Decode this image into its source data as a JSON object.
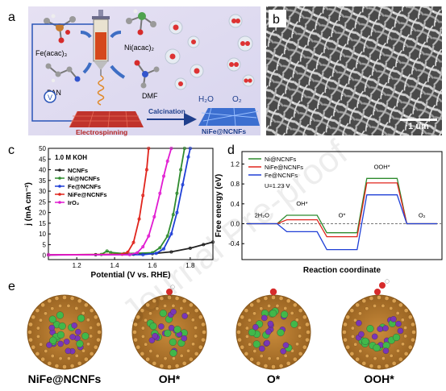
{
  "panels": {
    "a": {
      "letter": "a",
      "labels": {
        "fe": "Fe(acac)₃",
        "ni": "Ni(acac)₂",
        "pan": "PAN",
        "dmf": "DMF",
        "voltage": "V",
        "electrospinning": "Electrospinning",
        "calcination": "Calcination",
        "product": "NiFe@NCNFs",
        "h2o": "H₂O",
        "o2": "O₂"
      }
    },
    "b": {
      "letter": "b",
      "scalebar": "1 um"
    },
    "c": {
      "letter": "c"
    },
    "d": {
      "letter": "d"
    },
    "e": {
      "letter": "e",
      "structures": [
        {
          "label": "NiFe@NCNFs",
          "adsorbate": "none"
        },
        {
          "label": "OH*",
          "adsorbate": "OH"
        },
        {
          "label": "O*",
          "adsorbate": "O"
        },
        {
          "label": "OOH*",
          "adsorbate": "OOH"
        }
      ]
    }
  },
  "watermark": "Journal Pre-proof",
  "chart_data": [
    {
      "panel": "c",
      "type": "line",
      "xlabel": "Potential (V vs. RHE)",
      "ylabel": "j (mA cm⁻²)",
      "xlim": [
        1.05,
        1.92
      ],
      "ylim": [
        -2,
        50
      ],
      "xticks": [
        "1.2",
        "1.4",
        "1.6",
        "1.8"
      ],
      "yticks": [
        "0",
        "5",
        "10",
        "15",
        "20",
        "25",
        "30",
        "35",
        "40",
        "45",
        "50"
      ],
      "legend_title": "1.0 M KOH",
      "legend_position": "top-left",
      "series": [
        {
          "name": "NCNFs",
          "color": "#222222",
          "points": [
            [
              1.05,
              0.2
            ],
            [
              1.3,
              0.3
            ],
            [
              1.5,
              0.5
            ],
            [
              1.6,
              0.8
            ],
            [
              1.7,
              1.6
            ],
            [
              1.8,
              3.3
            ],
            [
              1.87,
              5
            ],
            [
              1.92,
              6.2
            ]
          ]
        },
        {
          "name": "Ni@NCNFs",
          "color": "#2e8b2e",
          "points": [
            [
              1.05,
              0.2
            ],
            [
              1.33,
              0.4
            ],
            [
              1.36,
              2
            ],
            [
              1.38,
              1.3
            ],
            [
              1.45,
              0.8
            ],
            [
              1.6,
              1.2
            ],
            [
              1.64,
              3.5
            ],
            [
              1.68,
              9
            ],
            [
              1.71,
              19
            ],
            [
              1.73,
              29
            ],
            [
              1.75,
              40
            ],
            [
              1.77,
              50
            ]
          ]
        },
        {
          "name": "Fe@NCNFs",
          "color": "#1f3fd6",
          "points": [
            [
              1.05,
              0.2
            ],
            [
              1.55,
              0.3
            ],
            [
              1.62,
              0.9
            ],
            [
              1.66,
              3
            ],
            [
              1.7,
              10
            ],
            [
              1.73,
              20
            ],
            [
              1.76,
              33
            ],
            [
              1.79,
              46
            ],
            [
              1.8,
              50
            ]
          ]
        },
        {
          "name": "NiFe@NCNFs",
          "color": "#e0241c",
          "points": [
            [
              1.05,
              0.2
            ],
            [
              1.44,
              0.5
            ],
            [
              1.47,
              1.5
            ],
            [
              1.5,
              6
            ],
            [
              1.53,
              17
            ],
            [
              1.55,
              28
            ],
            [
              1.57,
              40
            ],
            [
              1.58,
              50
            ]
          ]
        },
        {
          "name": "IrO₂",
          "color": "#e11ad1",
          "points": [
            [
              1.05,
              0.2
            ],
            [
              1.48,
              0.3
            ],
            [
              1.52,
              1.2
            ],
            [
              1.55,
              4
            ],
            [
              1.58,
              9
            ],
            [
              1.61,
              18
            ],
            [
              1.64,
              29
            ],
            [
              1.66,
              37
            ],
            [
              1.68,
              44
            ],
            [
              1.7,
              50
            ]
          ]
        }
      ]
    },
    {
      "panel": "d",
      "type": "line",
      "xlabel": "Reaction coordinate",
      "ylabel": "Free energy (eV)",
      "ylim": [
        -0.72,
        1.45
      ],
      "yticks": [
        "-0.4",
        "0.0",
        "0.4",
        "0.8",
        "1.2"
      ],
      "condition": "U=1.23 V",
      "legend_position": "top-left",
      "steps": [
        "2H₂O",
        "OH*",
        "O*",
        "OOH*",
        "O₂"
      ],
      "series": [
        {
          "name": "Ni@NCNFs",
          "color": "#2e8b2e",
          "values": [
            0,
            0.17,
            -0.18,
            0.91,
            0
          ]
        },
        {
          "name": "NiFe@NCNFs",
          "color": "#e0241c",
          "values": [
            0,
            0.08,
            -0.26,
            0.82,
            0
          ]
        },
        {
          "name": "Fe@NCNFs",
          "color": "#1f3fd6",
          "values": [
            0,
            -0.16,
            -0.52,
            0.58,
            0
          ]
        }
      ]
    }
  ]
}
